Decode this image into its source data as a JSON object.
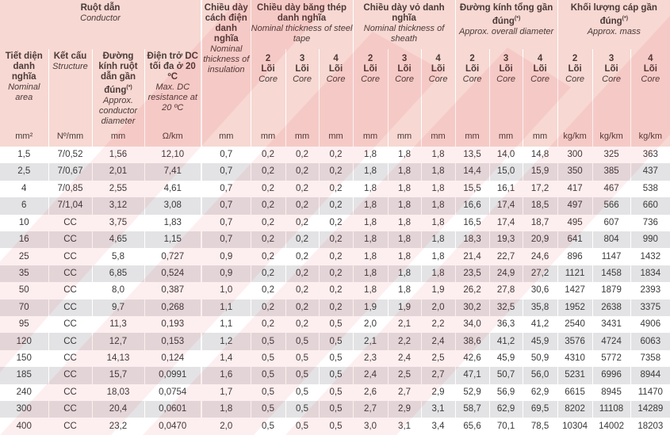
{
  "header": {
    "conductor": {
      "vi": "Ruột dẫn",
      "en": "Conductor"
    },
    "insulation": {
      "vi": "Chiều dày cách điện danh nghĩa",
      "en": "Nominal thickness of insulation"
    },
    "steel_tape": {
      "vi": "Chiều dày băng thép danh nghĩa",
      "en": "Nominal thickness of steel tape"
    },
    "sheath": {
      "vi": "Chiều dày vỏ danh nghĩa",
      "en": "Nominal thickness of sheath"
    },
    "overall_diameter": {
      "vi": "Đường kính tổng gần đúng",
      "en": "Approx. overall diameter",
      "mark": "(*)"
    },
    "mass": {
      "vi": "Khối lượng cáp gần đúng",
      "en": "Approx. mass",
      "mark": "(*)"
    },
    "area": {
      "vi": "Tiết diện danh nghĩa",
      "en": "Nominal area"
    },
    "structure": {
      "vi": "Kết cấu",
      "en": "Structure"
    },
    "cond_diameter": {
      "vi": "Đường kính ruột dẫn gần đúng",
      "en": "Approx. conductor diameter",
      "mark": "(*)"
    },
    "resistance": {
      "vi": "Điện trở DC tối đa ở 20 ºC",
      "en": "Max. DC resistance at 20 ºC"
    },
    "cores": [
      {
        "num": "2",
        "vi": "Lõi",
        "en": "Core"
      },
      {
        "num": "3",
        "vi": "Lõi",
        "en": "Core"
      },
      {
        "num": "4",
        "vi": "Lõi",
        "en": "Core"
      }
    ]
  },
  "units": [
    "mm²",
    "Nº/mm",
    "mm",
    "Ω/km",
    "mm",
    "mm",
    "mm",
    "mm",
    "mm",
    "mm",
    "mm",
    "mm",
    "mm",
    "mm",
    "kg/km",
    "kg/km",
    "kg/km"
  ],
  "rows": [
    [
      "1,5",
      "7/0,52",
      "1,56",
      "12,10",
      "0,7",
      "0,2",
      "0,2",
      "0,2",
      "1,8",
      "1,8",
      "1,8",
      "13,5",
      "14,0",
      "14,8",
      "300",
      "325",
      "363"
    ],
    [
      "2,5",
      "7/0,67",
      "2,01",
      "7,41",
      "0,7",
      "0,2",
      "0,2",
      "0,2",
      "1,8",
      "1,8",
      "1,8",
      "14,4",
      "15,0",
      "15,9",
      "350",
      "385",
      "437"
    ],
    [
      "4",
      "7/0,85",
      "2,55",
      "4,61",
      "0,7",
      "0,2",
      "0,2",
      "0,2",
      "1,8",
      "1,8",
      "1,8",
      "15,5",
      "16,1",
      "17,2",
      "417",
      "467",
      "538"
    ],
    [
      "6",
      "7/1,04",
      "3,12",
      "3,08",
      "0,7",
      "0,2",
      "0,2",
      "0,2",
      "1,8",
      "1,8",
      "1,8",
      "16,6",
      "17,4",
      "18,5",
      "497",
      "566",
      "660"
    ],
    [
      "10",
      "CC",
      "3,75",
      "1,83",
      "0,7",
      "0,2",
      "0,2",
      "0,2",
      "1,8",
      "1,8",
      "1,8",
      "16,5",
      "17,4",
      "18,7",
      "495",
      "607",
      "736"
    ],
    [
      "16",
      "CC",
      "4,65",
      "1,15",
      "0,7",
      "0,2",
      "0,2",
      "0,2",
      "1,8",
      "1,8",
      "1,8",
      "18,3",
      "19,3",
      "20,9",
      "641",
      "804",
      "990"
    ],
    [
      "25",
      "CC",
      "5,8",
      "0,727",
      "0,9",
      "0,2",
      "0,2",
      "0,2",
      "1,8",
      "1,8",
      "1,8",
      "21,4",
      "22,7",
      "24,6",
      "896",
      "1147",
      "1432"
    ],
    [
      "35",
      "CC",
      "6,85",
      "0,524",
      "0,9",
      "0,2",
      "0,2",
      "0,2",
      "1,8",
      "1,8",
      "1,8",
      "23,5",
      "24,9",
      "27,2",
      "1121",
      "1458",
      "1834"
    ],
    [
      "50",
      "CC",
      "8,0",
      "0,387",
      "1,0",
      "0,2",
      "0,2",
      "0,2",
      "1,8",
      "1,8",
      "1,9",
      "26,2",
      "27,8",
      "30,6",
      "1427",
      "1879",
      "2393"
    ],
    [
      "70",
      "CC",
      "9,7",
      "0,268",
      "1,1",
      "0,2",
      "0,2",
      "0,2",
      "1,9",
      "1,9",
      "2,0",
      "30,2",
      "32,5",
      "35,8",
      "1952",
      "2638",
      "3375"
    ],
    [
      "95",
      "CC",
      "11,3",
      "0,193",
      "1,1",
      "0,2",
      "0,2",
      "0,5",
      "2,0",
      "2,1",
      "2,2",
      "34,0",
      "36,3",
      "41,2",
      "2540",
      "3431",
      "4906"
    ],
    [
      "120",
      "CC",
      "12,7",
      "0,153",
      "1,2",
      "0,5",
      "0,5",
      "0,5",
      "2,1",
      "2,2",
      "2,4",
      "38,6",
      "41,2",
      "45,9",
      "3576",
      "4724",
      "6063"
    ],
    [
      "150",
      "CC",
      "14,13",
      "0,124",
      "1,4",
      "0,5",
      "0,5",
      "0,5",
      "2,3",
      "2,4",
      "2,5",
      "42,6",
      "45,9",
      "50,9",
      "4310",
      "5772",
      "7358"
    ],
    [
      "185",
      "CC",
      "15,7",
      "0,0991",
      "1,6",
      "0,5",
      "0,5",
      "0,5",
      "2,4",
      "2,5",
      "2,7",
      "47,1",
      "50,7",
      "56,0",
      "5231",
      "6996",
      "8944"
    ],
    [
      "240",
      "CC",
      "18,03",
      "0,0754",
      "1,7",
      "0,5",
      "0,5",
      "0,5",
      "2,6",
      "2,7",
      "2,9",
      "52,9",
      "56,9",
      "62,9",
      "6615",
      "8945",
      "11470"
    ],
    [
      "300",
      "CC",
      "20,4",
      "0,0601",
      "1,8",
      "0,5",
      "0,5",
      "0,5",
      "2,7",
      "2,9",
      "3,1",
      "58,7",
      "62,9",
      "69,5",
      "8202",
      "11108",
      "14289"
    ],
    [
      "400",
      "CC",
      "23,2",
      "0,0470",
      "2,0",
      "0,5",
      "0,5",
      "0,5",
      "3,0",
      "3,1",
      "3,4",
      "65,6",
      "70,1",
      "78,5",
      "10304",
      "14002",
      "18203"
    ]
  ],
  "colors": {
    "header_bg": "#f7d8d2",
    "stripe": "#e3e3e5",
    "watermark": "#e8202a"
  }
}
